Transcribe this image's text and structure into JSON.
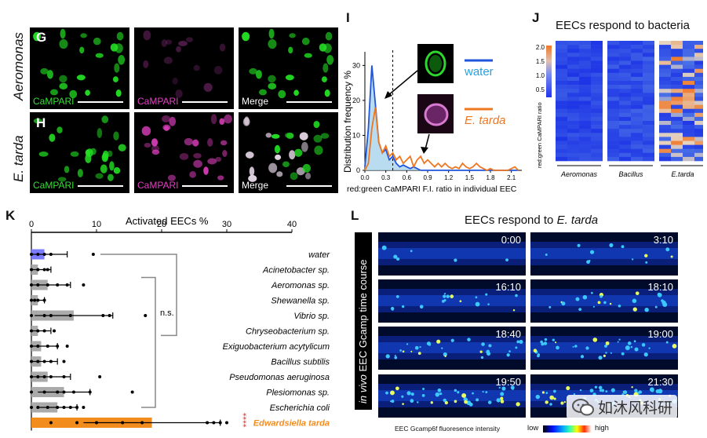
{
  "panel_letters": {
    "G": "G",
    "H": "H",
    "I": "I",
    "J": "J",
    "K": "K",
    "L": "L"
  },
  "panel_g_h": {
    "row_labels": [
      "Aeromonas",
      "E. tarda"
    ],
    "channel_labels": [
      "CaMPARI",
      "CaMPARI",
      "Merge"
    ],
    "colors": {
      "green": "#22dd22",
      "magenta": "#e040c0",
      "white": "#ffffff"
    }
  },
  "panel_i": {
    "ylabel": "Distribution frequency %",
    "xlabel": "red:green CaMPARI F.I. ratio in individual EEC",
    "legend_water": "water",
    "legend_etarda": "E. tarda",
    "colors": {
      "water": "#2255dd",
      "etarda": "#ee7722",
      "fill": "#a9d3ec"
    }
  },
  "panel_j": {
    "title": "EECs respond to bacteria",
    "colorbar_label": "red:green CaMPARI ratio",
    "colorbar_ticks": [
      "2.0",
      "1.5",
      "1.0",
      "0.5"
    ],
    "groups": [
      "Aeromonas",
      "Bacillus",
      "E.tarda"
    ]
  },
  "panel_k": {
    "title": "Activated EECs %",
    "axis_ticks": [
      "0",
      "10",
      "20",
      "30",
      "40"
    ],
    "ns_label": "n.s.",
    "sig_label": "****",
    "colors": {
      "water": "#7b7bff",
      "other": "#aaaaaa",
      "etarda": "#f28c1c",
      "sig": "#ee3333"
    }
  },
  "panel_l": {
    "title_prefix": "EECs respond to ",
    "title_species": "E. tarda",
    "side_label_italic": "in vivo",
    "side_label_rest": " EEC Gcamp time course",
    "times": [
      "0:00",
      "3:10",
      "16:10",
      "18:10",
      "18:40",
      "19:00",
      "19:50",
      "21:30"
    ],
    "intensity_label": "EEC Gcamp6f fluoresence intensity",
    "low": "low",
    "high": "high",
    "watermark": "如沐风科研"
  },
  "chart_data": [
    {
      "type": "line",
      "panel": "I",
      "xlabel": "red:green CaMPARI F.I. ratio in individual EEC",
      "ylabel": "Distribution frequency %",
      "x_ticks": [
        "0.0",
        "0.3",
        "0.6",
        "0.9",
        "1.2",
        "1.5",
        "1.8",
        "2.1"
      ],
      "y_ticks": [
        "0",
        "10",
        "20",
        "30"
      ],
      "xlim": [
        0,
        2.25
      ],
      "ylim": [
        0,
        33
      ],
      "threshold": 0.4,
      "x": [
        0.0,
        0.05,
        0.1,
        0.15,
        0.2,
        0.25,
        0.3,
        0.35,
        0.4,
        0.45,
        0.5,
        0.55,
        0.6,
        0.65,
        0.7,
        0.75,
        0.8,
        0.85,
        0.9,
        0.95,
        1.0,
        1.05,
        1.1,
        1.15,
        1.2,
        1.25,
        1.3,
        1.35,
        1.4,
        1.45,
        1.5,
        1.55,
        1.6,
        1.65,
        1.7,
        1.75,
        1.8,
        1.85,
        1.9,
        1.95,
        2.0,
        2.05,
        2.1,
        2.15,
        2.2
      ],
      "series": [
        {
          "name": "water",
          "values": [
            1,
            12,
            30,
            19,
            8,
            5,
            6,
            3,
            4,
            2,
            1,
            1.5,
            1,
            0.5,
            1,
            0.5,
            0,
            0,
            0,
            0,
            0,
            0,
            0,
            0,
            0,
            0,
            0,
            0,
            0,
            0,
            0,
            0,
            0,
            0,
            0,
            0,
            0,
            0,
            0,
            0,
            0,
            0,
            0,
            0,
            0
          ]
        },
        {
          "name": "E. tarda",
          "values": [
            0,
            2,
            12,
            18,
            8,
            5,
            7,
            4,
            5,
            3,
            4,
            2,
            3,
            4,
            1,
            3,
            4,
            2,
            3,
            2,
            1,
            2,
            1,
            2,
            1,
            0.5,
            1,
            0.5,
            2,
            1,
            0.5,
            1,
            2,
            1,
            0.5,
            0,
            0.5,
            0,
            0,
            0,
            0,
            0,
            0.5,
            1,
            0
          ]
        }
      ]
    },
    {
      "type": "heatmap",
      "panel": "J",
      "title": "EECs respond to bacteria",
      "groups": [
        "Aeromonas",
        "Bacillus",
        "E.tarda"
      ],
      "columns_per_group": 4,
      "rows": 30,
      "value_range": [
        0,
        2.0
      ],
      "colorbar_ticks": [
        2.0,
        1.5,
        1.0,
        0.5
      ]
    },
    {
      "type": "bar",
      "panel": "K",
      "title": "Activated EECs %",
      "orientation": "horizontal",
      "xlim": [
        0,
        40
      ],
      "categories": [
        "water",
        "Acinetobacter sp.",
        "Aeromonas sp.",
        "Shewanella sp.",
        "Vibrio sp.",
        "Chryseobacterium sp.",
        "Exiguobacterium acytylicum",
        "Bacillus subtilis",
        "Pseudomonas aeruginosa",
        "Plesiomonas sp.",
        "Escherichia coli",
        "Edwardsiella tarda"
      ],
      "values": [
        2.0,
        1.0,
        2.5,
        1.0,
        6.5,
        1.0,
        1.5,
        1.5,
        2.5,
        5.0,
        4.0,
        18.5
      ],
      "errors": [
        3.5,
        2.0,
        3.5,
        1.0,
        6.0,
        2.0,
        2.5,
        2.5,
        3.5,
        4.0,
        3.0,
        10.5
      ],
      "points": [
        [
          0,
          1,
          2,
          3,
          9.5
        ],
        [
          0,
          1,
          2,
          2.5
        ],
        [
          0,
          1,
          2.5,
          4,
          5.5,
          8
        ],
        [
          0,
          0.5,
          1,
          2
        ],
        [
          0,
          2,
          3,
          6,
          11,
          12,
          17.5
        ],
        [
          0,
          1,
          2,
          3.5
        ],
        [
          0,
          1,
          2.5,
          4,
          5.5
        ],
        [
          0,
          1,
          2,
          3,
          5
        ],
        [
          0,
          1,
          2,
          3,
          5,
          10.5
        ],
        [
          0,
          2,
          4,
          5,
          6.5,
          9,
          15.5
        ],
        [
          0,
          1,
          2.5,
          4,
          5,
          6,
          7,
          8
        ],
        [
          3,
          7,
          10,
          14,
          17,
          27,
          28,
          29,
          30
        ]
      ],
      "significance": "****",
      "ns": "n.s."
    }
  ]
}
